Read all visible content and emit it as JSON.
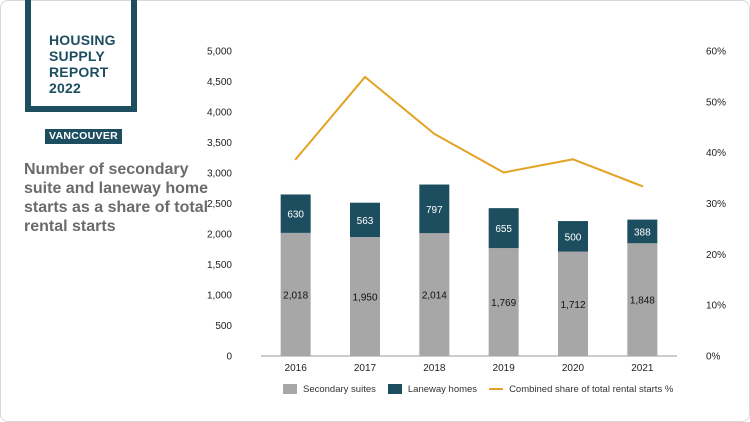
{
  "report": {
    "title_lines": [
      "HOUSING",
      "SUPPLY",
      "REPORT",
      "2022"
    ],
    "tag": "VANCOUVER",
    "headline": "Number of secondary suite and laneway home starts as a share of total rental starts"
  },
  "colors": {
    "brand": "#1d4e60",
    "secondary_suites": "#a7a7a7",
    "laneway_homes": "#1d4e60",
    "share_line": "#e3a324",
    "headline": "#6b6b6b"
  },
  "chart_data": {
    "type": "bar",
    "stacked": true,
    "categories": [
      "2016",
      "2017",
      "2018",
      "2019",
      "2020",
      "2021"
    ],
    "series": [
      {
        "name": "Secondary suites",
        "values": [
          2018,
          1950,
          2014,
          1769,
          1712,
          1848
        ],
        "labels": [
          "2,018",
          "1,950",
          "2,014",
          "1,769",
          "1,712",
          "1,848"
        ]
      },
      {
        "name": "Laneway homes",
        "values": [
          630,
          563,
          797,
          655,
          500,
          388
        ],
        "labels": [
          "630",
          "563",
          "797",
          "655",
          "500",
          "388"
        ]
      }
    ],
    "line_series": {
      "name": "Combined share of total rental starts %",
      "axis": "right",
      "values": [
        38.7,
        54.9,
        43.7,
        36.1,
        38.7,
        33.4
      ]
    },
    "y_left": {
      "min": 0,
      "max": 5000,
      "ticks": [
        "0",
        "500",
        "1,000",
        "1,500",
        "2,000",
        "2,500",
        "3,000",
        "3,500",
        "4,000",
        "4,500",
        "5,000"
      ]
    },
    "y_right": {
      "min": 0,
      "max": 60,
      "ticks": [
        "0%",
        "10%",
        "20%",
        "30%",
        "40%",
        "50%",
        "60%"
      ]
    },
    "grid": false,
    "legend_position": "bottom"
  }
}
